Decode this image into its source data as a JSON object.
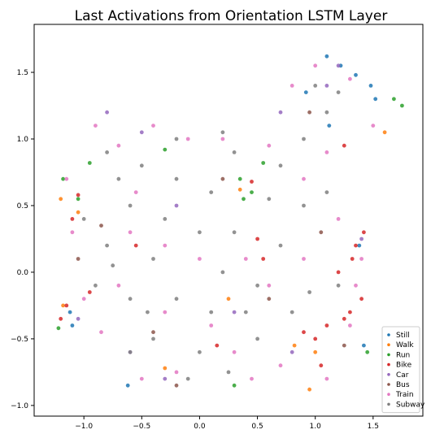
{
  "chart_data": {
    "type": "scatter",
    "title": "Last Activations from Orientation LSTM Layer",
    "xlabel": "",
    "ylabel": "",
    "xlim": [
      -1.43,
      1.93
    ],
    "ylim": [
      -1.08,
      1.86
    ],
    "x_ticks": [
      -1.0,
      -0.5,
      0.0,
      0.5,
      1.0,
      1.5
    ],
    "x_tick_labels": [
      "−1.0",
      "−0.5",
      "0.0",
      "0.5",
      "1.0",
      "1.5"
    ],
    "y_ticks": [
      -1.0,
      -0.5,
      0.0,
      0.5,
      1.0,
      1.5
    ],
    "y_tick_labels": [
      "−1.0",
      "−0.5",
      "0.0",
      "0.5",
      "1.0",
      "1.5"
    ],
    "grid": false,
    "legend_position": "lower-right",
    "series": [
      {
        "name": "Still",
        "color": "#1f77b4",
        "points": [
          [
            1.1,
            1.62
          ],
          [
            1.22,
            1.55
          ],
          [
            1.35,
            1.48
          ],
          [
            1.48,
            1.4
          ],
          [
            1.52,
            1.3
          ],
          [
            -1.1,
            -0.4
          ],
          [
            1.38,
            0.2
          ],
          [
            1.42,
            -0.55
          ],
          [
            -0.62,
            -0.85
          ],
          [
            1.12,
            1.1
          ],
          [
            0.92,
            1.35
          ],
          [
            -1.12,
            -0.3
          ]
        ]
      },
      {
        "name": "Walk",
        "color": "#ff7f0e",
        "points": [
          [
            -1.2,
            0.55
          ],
          [
            -1.05,
            0.45
          ],
          [
            0.95,
            -0.88
          ],
          [
            -0.3,
            -0.72
          ],
          [
            0.35,
            0.62
          ],
          [
            1.6,
            1.05
          ],
          [
            -1.18,
            -0.25
          ],
          [
            1.0,
            -0.6
          ],
          [
            0.25,
            -0.2
          ],
          [
            0.82,
            -0.55
          ]
        ]
      },
      {
        "name": "Run",
        "color": "#2ca02c",
        "points": [
          [
            -1.22,
            -0.42
          ],
          [
            -1.18,
            0.7
          ],
          [
            0.35,
            0.7
          ],
          [
            0.45,
            0.6
          ],
          [
            1.75,
            1.25
          ],
          [
            0.55,
            0.82
          ],
          [
            -1.05,
            0.55
          ],
          [
            1.45,
            -0.6
          ],
          [
            0.3,
            -0.85
          ],
          [
            -0.3,
            0.92
          ],
          [
            -0.95,
            0.82
          ],
          [
            1.68,
            1.3
          ],
          [
            0.38,
            0.55
          ]
        ]
      },
      {
        "name": "Bike",
        "color": "#d62728",
        "points": [
          [
            1.35,
            0.2
          ],
          [
            1.3,
            -0.3
          ],
          [
            1.25,
            -0.35
          ],
          [
            1.4,
            -0.2
          ],
          [
            1.42,
            0.3
          ],
          [
            -1.15,
            -0.25
          ],
          [
            -1.1,
            0.4
          ],
          [
            0.55,
            0.1
          ],
          [
            0.5,
            0.25
          ],
          [
            -1.2,
            -0.35
          ],
          [
            1.0,
            -0.5
          ],
          [
            1.2,
            0.0
          ],
          [
            1.1,
            -0.4
          ],
          [
            0.9,
            -0.45
          ],
          [
            1.32,
            0.1
          ],
          [
            -0.95,
            -0.15
          ],
          [
            -1.05,
            0.58
          ],
          [
            1.25,
            0.95
          ],
          [
            -0.55,
            0.2
          ],
          [
            0.15,
            -0.55
          ],
          [
            0.45,
            0.68
          ],
          [
            1.05,
            -0.7
          ]
        ]
      },
      {
        "name": "Car",
        "color": "#9467bd",
        "points": [
          [
            1.2,
            1.55
          ],
          [
            1.1,
            1.4
          ],
          [
            -0.8,
            1.2
          ],
          [
            -0.5,
            1.05
          ],
          [
            -0.3,
            -0.8
          ],
          [
            1.4,
            0.25
          ],
          [
            -1.05,
            -0.35
          ],
          [
            0.8,
            -0.6
          ],
          [
            -0.6,
            -0.6
          ],
          [
            -0.2,
            0.5
          ],
          [
            0.7,
            1.2
          ],
          [
            0.3,
            -0.3
          ]
        ]
      },
      {
        "name": "Bus",
        "color": "#8c564b",
        "points": [
          [
            0.95,
            1.2
          ],
          [
            -0.85,
            0.35
          ],
          [
            -0.4,
            -0.45
          ],
          [
            0.6,
            -0.2
          ],
          [
            1.25,
            -0.55
          ],
          [
            -1.05,
            0.1
          ],
          [
            0.2,
            0.7
          ],
          [
            -0.2,
            -0.85
          ],
          [
            1.05,
            0.3
          ]
        ]
      },
      {
        "name": "Train",
        "color": "#e377c2",
        "points": [
          [
            -0.9,
            1.1
          ],
          [
            -0.7,
            0.95
          ],
          [
            -1.1,
            0.3
          ],
          [
            -1.0,
            -0.2
          ],
          [
            -0.85,
            -0.45
          ],
          [
            -0.5,
            -0.8
          ],
          [
            -0.2,
            -0.75
          ],
          [
            0.3,
            -0.6
          ],
          [
            0.7,
            -0.7
          ],
          [
            1.1,
            -0.8
          ],
          [
            1.3,
            -0.4
          ],
          [
            1.4,
            0.1
          ],
          [
            1.2,
            0.4
          ],
          [
            0.9,
            0.7
          ],
          [
            0.6,
            0.95
          ],
          [
            0.8,
            1.4
          ],
          [
            1.0,
            1.55
          ],
          [
            1.3,
            1.45
          ],
          [
            1.5,
            1.1
          ],
          [
            -0.4,
            1.1
          ],
          [
            -0.1,
            1.0
          ],
          [
            0.2,
            1.0
          ],
          [
            -0.6,
            0.3
          ],
          [
            -0.3,
            0.2
          ],
          [
            0.0,
            0.1
          ],
          [
            0.4,
            0.1
          ],
          [
            0.6,
            -0.1
          ],
          [
            -0.7,
            -0.1
          ],
          [
            -0.3,
            -0.3
          ],
          [
            0.1,
            -0.4
          ],
          [
            0.9,
            0.1
          ],
          [
            1.1,
            0.9
          ],
          [
            -1.15,
            0.7
          ],
          [
            -0.55,
            0.6
          ],
          [
            0.45,
            -0.8
          ],
          [
            1.35,
            -0.1
          ]
        ]
      },
      {
        "name": "Subway",
        "color": "#7f7f7f",
        "points": [
          [
            -0.8,
            0.9
          ],
          [
            -0.5,
            0.8
          ],
          [
            -0.2,
            0.7
          ],
          [
            0.1,
            0.6
          ],
          [
            -0.6,
            0.5
          ],
          [
            -0.3,
            0.4
          ],
          [
            0.0,
            0.3
          ],
          [
            0.3,
            0.3
          ],
          [
            -0.8,
            0.2
          ],
          [
            -0.4,
            0.1
          ],
          [
            0.2,
            0.0
          ],
          [
            0.5,
            -0.1
          ],
          [
            -0.6,
            -0.2
          ],
          [
            -0.2,
            -0.2
          ],
          [
            0.1,
            -0.3
          ],
          [
            0.4,
            -0.3
          ],
          [
            -0.4,
            -0.5
          ],
          [
            0.0,
            -0.6
          ],
          [
            0.5,
            -0.5
          ],
          [
            0.8,
            -0.3
          ],
          [
            0.7,
            0.2
          ],
          [
            0.9,
            0.5
          ],
          [
            0.7,
            0.8
          ],
          [
            0.9,
            1.0
          ],
          [
            1.1,
            1.2
          ],
          [
            1.0,
            1.4
          ],
          [
            1.2,
            1.35
          ],
          [
            -0.7,
            0.7
          ],
          [
            -0.9,
            -0.1
          ],
          [
            -0.6,
            -0.6
          ],
          [
            -0.2,
            1.0
          ],
          [
            0.2,
            1.05
          ],
          [
            1.1,
            0.6
          ],
          [
            1.2,
            -0.1
          ],
          [
            -1.0,
            0.4
          ],
          [
            -0.1,
            -0.8
          ],
          [
            0.6,
            0.55
          ],
          [
            0.3,
            0.9
          ],
          [
            -0.45,
            -0.3
          ],
          [
            0.95,
            -0.15
          ],
          [
            0.25,
            -0.75
          ],
          [
            -0.75,
            0.05
          ]
        ]
      }
    ]
  }
}
